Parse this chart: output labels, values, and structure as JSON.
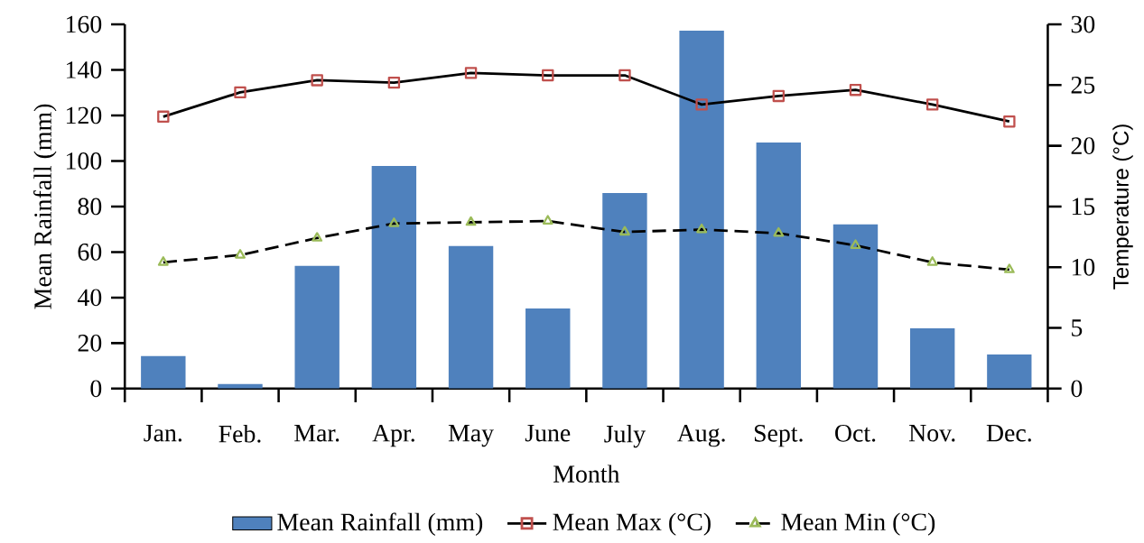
{
  "chart_data": {
    "type": "bar",
    "xlabel": "Month",
    "ylabel": "Mean Rainfall (mm)",
    "y2label": "Temperature (°C)",
    "categories": [
      "Jan.",
      "Feb.",
      "Mar.",
      "Apr.",
      "May",
      "June",
      "July",
      "Aug.",
      "Sept.",
      "Oct.",
      "Nov.",
      "Dec."
    ],
    "ylim": [
      0,
      160
    ],
    "yticks": [
      0,
      20,
      40,
      60,
      80,
      100,
      120,
      140,
      160
    ],
    "y2lim": [
      0,
      30
    ],
    "y2ticks": [
      0,
      5,
      10,
      15,
      20,
      25,
      30
    ],
    "legend": "bottom",
    "grid": false,
    "series": [
      {
        "name": "Mean Rainfall (mm)",
        "color": "#4f81bd",
        "values": [
          14.3,
          2,
          53.9,
          97.8,
          62.6,
          35.2,
          85.9,
          157.2,
          108.1,
          72.1,
          26.5,
          15
        ]
      },
      {
        "name": "Mean Max (°C)",
        "type": "line",
        "axis": "y2",
        "color": "#c0504d",
        "marker": "square",
        "line_style": "solid",
        "values": [
          22.4,
          24.4,
          25.4,
          25.2,
          26.0,
          25.8,
          25.8,
          23.4,
          24.1,
          24.6,
          23.4,
          22.0
        ]
      },
      {
        "name": "Mean Min (°C)",
        "type": "line",
        "axis": "y2",
        "color": "#9bbb59",
        "marker": "triangle",
        "line_style": "dashed",
        "values": [
          10.4,
          11.0,
          12.4,
          13.6,
          13.7,
          13.8,
          12.9,
          13.1,
          12.8,
          11.8,
          10.4,
          9.8
        ]
      }
    ]
  }
}
